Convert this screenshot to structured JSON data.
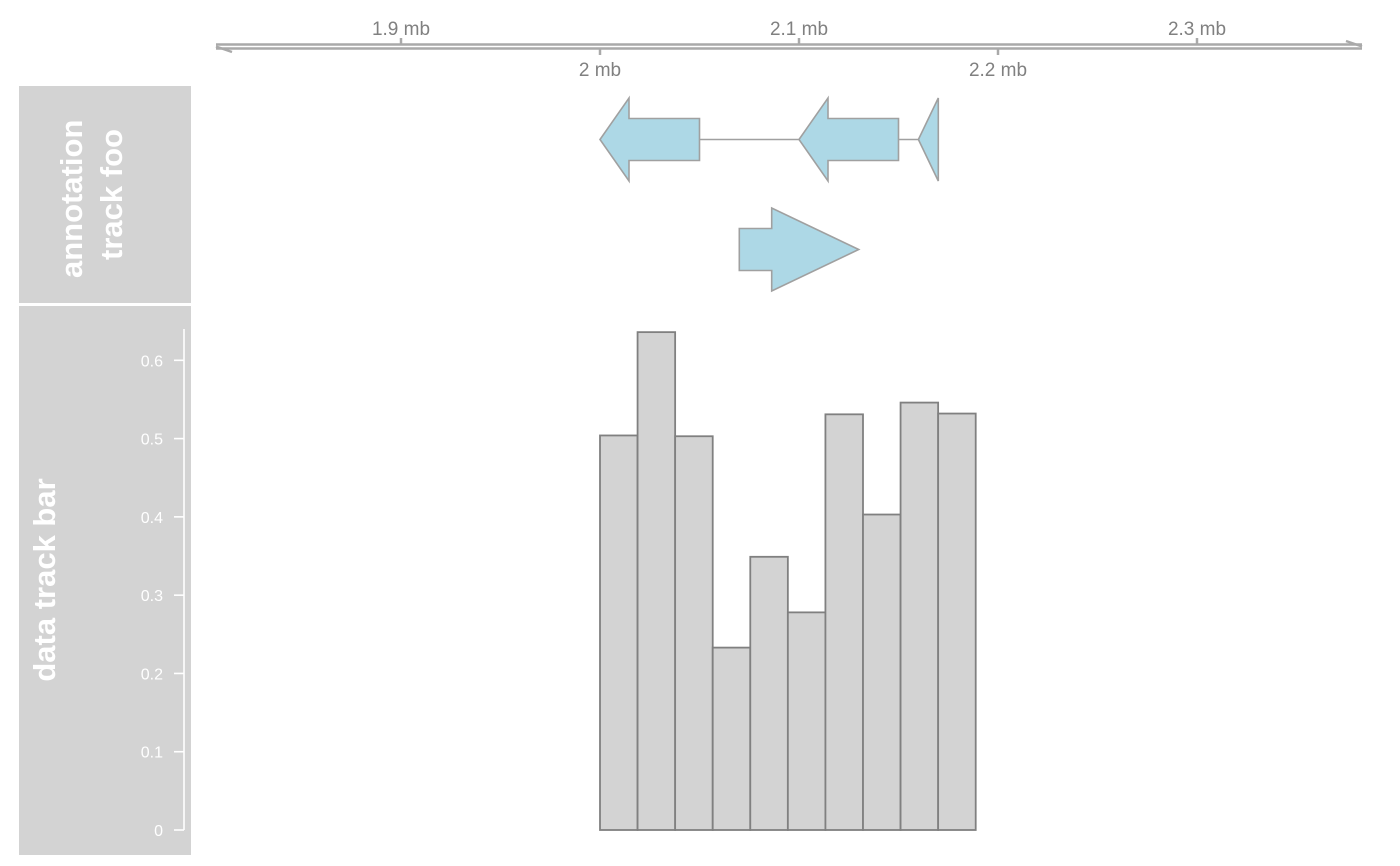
{
  "chart_data": {
    "type": "bar",
    "genome_axis": {
      "unit": "mb",
      "range": [
        1.8,
        2.38
      ],
      "ticks_top": [
        {
          "value": 1.9,
          "label": "1.9 mb"
        },
        {
          "value": 2.1,
          "label": "2.1 mb"
        },
        {
          "value": 2.3,
          "label": "2.3 mb"
        }
      ],
      "ticks_bottom": [
        {
          "value": 2.0,
          "label": "2 mb"
        },
        {
          "value": 2.2,
          "label": "2.2 mb"
        }
      ]
    },
    "tracks": [
      {
        "title": "annotation track foo",
        "title_lines": [
          "annotation",
          "track foo"
        ],
        "type": "annotation",
        "fill": "#add8e6",
        "stroke": "#a0a0a0",
        "features": [
          {
            "row": 1,
            "start": 2.0,
            "end": 2.05,
            "strand": "-",
            "group": "a"
          },
          {
            "row": 1,
            "start": 2.1,
            "end": 2.15,
            "strand": "-",
            "group": "a"
          },
          {
            "row": 1,
            "start": 2.16,
            "end": 2.17,
            "strand": "-",
            "group": "a"
          },
          {
            "row": 2,
            "start": 2.07,
            "end": 2.13,
            "strand": "+",
            "group": "b"
          }
        ]
      },
      {
        "title": "data track bar",
        "type": "bar",
        "ylim": [
          0,
          0.64
        ],
        "yticks": [
          0,
          0.1,
          0.2,
          0.3,
          0.4,
          0.5,
          0.6
        ],
        "ytick_labels": [
          "0",
          "0.1",
          "0.2",
          "0.3",
          "0.4",
          "0.5",
          "0.6"
        ],
        "fill": "#d3d3d3",
        "stroke": "#808080",
        "bin_start": 2.0,
        "bin_width": 0.01888,
        "values": [
          0.504,
          0.636,
          0.503,
          0.233,
          0.349,
          0.278,
          0.531,
          0.403,
          0.546,
          0.532
        ]
      }
    ]
  }
}
